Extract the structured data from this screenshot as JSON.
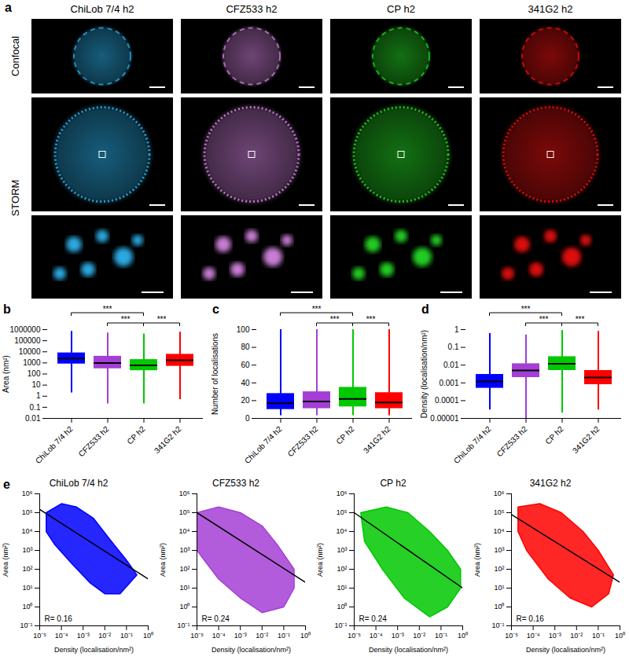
{
  "panel_a": {
    "title": "a",
    "columns": [
      "ChiLob 7/4 h2",
      "CFZ533 h2",
      "CP h2",
      "341G2 h2"
    ],
    "rows": [
      "Confocal",
      "STORM"
    ],
    "colors": [
      "#29a8e0",
      "#c77dd4",
      "#22cc22",
      "#e01010"
    ]
  },
  "chart_data": [
    {
      "type": "strip",
      "title": "b",
      "ylabel": "Area (nm²)",
      "log": "y",
      "categories": [
        "ChiLob 7/4 h2",
        "CFZ533 h2",
        "CP h2",
        "341G2 h2"
      ],
      "colors": [
        "#0000ff",
        "#a43fd6",
        "#00c800",
        "#ff0000"
      ],
      "min": [
        2,
        0.2,
        0.2,
        0.5
      ],
      "q1": [
        800,
        300,
        200,
        500
      ],
      "median": [
        2500,
        1000,
        600,
        1700
      ],
      "q3": [
        8000,
        4000,
        2000,
        6000
      ],
      "max": [
        700000,
        500000,
        400000,
        600000
      ],
      "ylim": [
        0.01,
        1000000
      ],
      "yticks": [
        0.01,
        0.1,
        1,
        10,
        100,
        1000,
        10000,
        100000,
        1000000
      ],
      "annotations": [
        {
          "from": "ChiLob 7/4 h2",
          "to": "CP h2",
          "text": "***"
        },
        {
          "from": "CFZ533 h2",
          "to": "CP h2",
          "text": "***"
        },
        {
          "from": "CP h2",
          "to": "341G2 h2",
          "text": "***"
        }
      ]
    },
    {
      "type": "strip",
      "title": "c",
      "ylabel": "Number of localisations",
      "categories": [
        "ChiLob 7/4 h2",
        "CFZ533 h2",
        "CP h2",
        "341G2 h2"
      ],
      "colors": [
        "#0000ff",
        "#a43fd6",
        "#00c800",
        "#ff0000"
      ],
      "min": [
        3,
        3,
        3,
        3
      ],
      "q1": [
        10,
        11,
        13,
        11
      ],
      "median": [
        17,
        19,
        22,
        18
      ],
      "q3": [
        28,
        30,
        35,
        29
      ],
      "max": [
        100,
        100,
        100,
        100
      ],
      "ylim": [
        0,
        100
      ],
      "yticks": [
        0,
        20,
        40,
        60,
        80,
        100
      ],
      "annotations": [
        {
          "from": "ChiLob 7/4 h2",
          "to": "CP h2",
          "text": "***"
        },
        {
          "from": "CFZ533 h2",
          "to": "CP h2",
          "text": "***"
        },
        {
          "from": "CP h2",
          "to": "341G2 h2",
          "text": "***"
        }
      ]
    },
    {
      "type": "strip",
      "title": "d",
      "ylabel": "Density (localisation/nm²)",
      "log": "y",
      "categories": [
        "ChiLob 7/4 h2",
        "CFZ533 h2",
        "CP h2",
        "341G2 h2"
      ],
      "colors": [
        "#0000ff",
        "#a43fd6",
        "#00c800",
        "#ff0000"
      ],
      "min": [
        3e-05,
        1e-05,
        2e-05,
        3e-05
      ],
      "q1": [
        0.0005,
        0.002,
        0.005,
        0.0008
      ],
      "median": [
        0.0012,
        0.005,
        0.012,
        0.002
      ],
      "q3": [
        0.003,
        0.012,
        0.03,
        0.005
      ],
      "max": [
        0.6,
        0.5,
        0.9,
        0.8
      ],
      "ylim": [
        1e-05,
        1
      ],
      "yticks": [
        1e-05,
        0.0001,
        0.001,
        0.01,
        0.1,
        1
      ],
      "annotations": [
        {
          "from": "ChiLob 7/4 h2",
          "to": "CP h2",
          "text": "***"
        },
        {
          "from": "CFZ533 h2",
          "to": "CP h2",
          "text": "***"
        },
        {
          "from": "CP h2",
          "to": "341G2 h2",
          "text": "***"
        }
      ]
    },
    {
      "type": "scatter",
      "title": "e",
      "log": true,
      "xlabel": "Density (localisation/nm²)",
      "ylabel": "Area (nm²)",
      "xlim": [
        1e-05,
        1
      ],
      "ylim": [
        0.1,
        1000000
      ],
      "xticks": [
        {
          "value": 1e-05,
          "label": "10⁻⁵"
        },
        {
          "value": 0.0001,
          "label": "10⁻⁴"
        },
        {
          "value": 0.001,
          "label": "10⁻³"
        },
        {
          "value": 0.01,
          "label": "10⁻²"
        },
        {
          "value": 0.1,
          "label": "10⁻¹"
        },
        {
          "value": 1,
          "label": "10⁰"
        }
      ],
      "yticks": [
        {
          "value": 0.1,
          "label": "10⁻¹"
        },
        {
          "value": 1,
          "label": "10⁰"
        },
        {
          "value": 10,
          "label": "10¹"
        },
        {
          "value": 100,
          "label": "10²"
        },
        {
          "value": 1000,
          "label": "10³"
        },
        {
          "value": 10000,
          "label": "10⁴"
        },
        {
          "value": 100000,
          "label": "10⁵"
        },
        {
          "value": 1000000,
          "label": "10⁶"
        }
      ],
      "panels": [
        {
          "name": "ChiLob 7/4 h2",
          "color": "#0000ff",
          "region": {
            "x": [
              2e-05,
              0.0001,
              0.0005,
              0.003,
              0.02,
              0.1,
              0.3,
              0.05,
              0.01,
              0.002,
              0.0003,
              5e-05,
              2e-05
            ],
            "y": [
              100000,
              300000,
              200000,
              50000,
              3000,
              300,
              50,
              5,
              5,
              20,
              200,
              2000,
              10000
            ]
          },
          "fit": {
            "x": [
              1e-05,
              1
            ],
            "y": [
              150000,
              30
            ]
          },
          "annotation": "R= 0.16"
        },
        {
          "name": "CFZ533 h2",
          "color": "#a43fd6",
          "region": {
            "x": [
              1e-05,
              0.0001,
              0.001,
              0.01,
              0.05,
              0.3,
              0.3,
              0.1,
              0.01,
              0.001,
              0.0001,
              1e-05
            ],
            "y": [
              100000,
              200000,
              100000,
              20000,
              2000,
              100,
              10,
              1,
              0.5,
              3,
              30,
              1000
            ]
          },
          "fit": {
            "x": [
              1e-05,
              1
            ],
            "y": [
              100000,
              20
            ]
          },
          "annotation": "R= 0.24"
        },
        {
          "name": "CP h2",
          "color": "#00c800",
          "region": {
            "x": [
              2e-05,
              0.0003,
              0.003,
              0.03,
              0.2,
              0.8,
              0.8,
              0.2,
              0.03,
              0.002,
              0.0002,
              3e-05
            ],
            "y": [
              100000,
              200000,
              100000,
              10000,
              1000,
              100,
              10,
              1,
              0.3,
              3,
              100,
              3000
            ]
          },
          "fit": {
            "x": [
              1e-05,
              1
            ],
            "y": [
              100000,
              10
            ]
          },
          "annotation": "R= 0.24"
        },
        {
          "name": "341G2 h2",
          "color": "#ff0000",
          "region": {
            "x": [
              2e-05,
              0.0002,
              0.002,
              0.02,
              0.1,
              0.5,
              0.3,
              0.05,
              0.005,
              0.0005,
              5e-05,
              2e-05
            ],
            "y": [
              200000,
              300000,
              100000,
              10000,
              1000,
              50,
              5,
              1,
              3,
              30,
              1000,
              10000
            ]
          },
          "fit": {
            "x": [
              1e-05,
              1
            ],
            "y": [
              80000,
              20
            ]
          },
          "annotation": "R= 0.16"
        }
      ]
    }
  ]
}
